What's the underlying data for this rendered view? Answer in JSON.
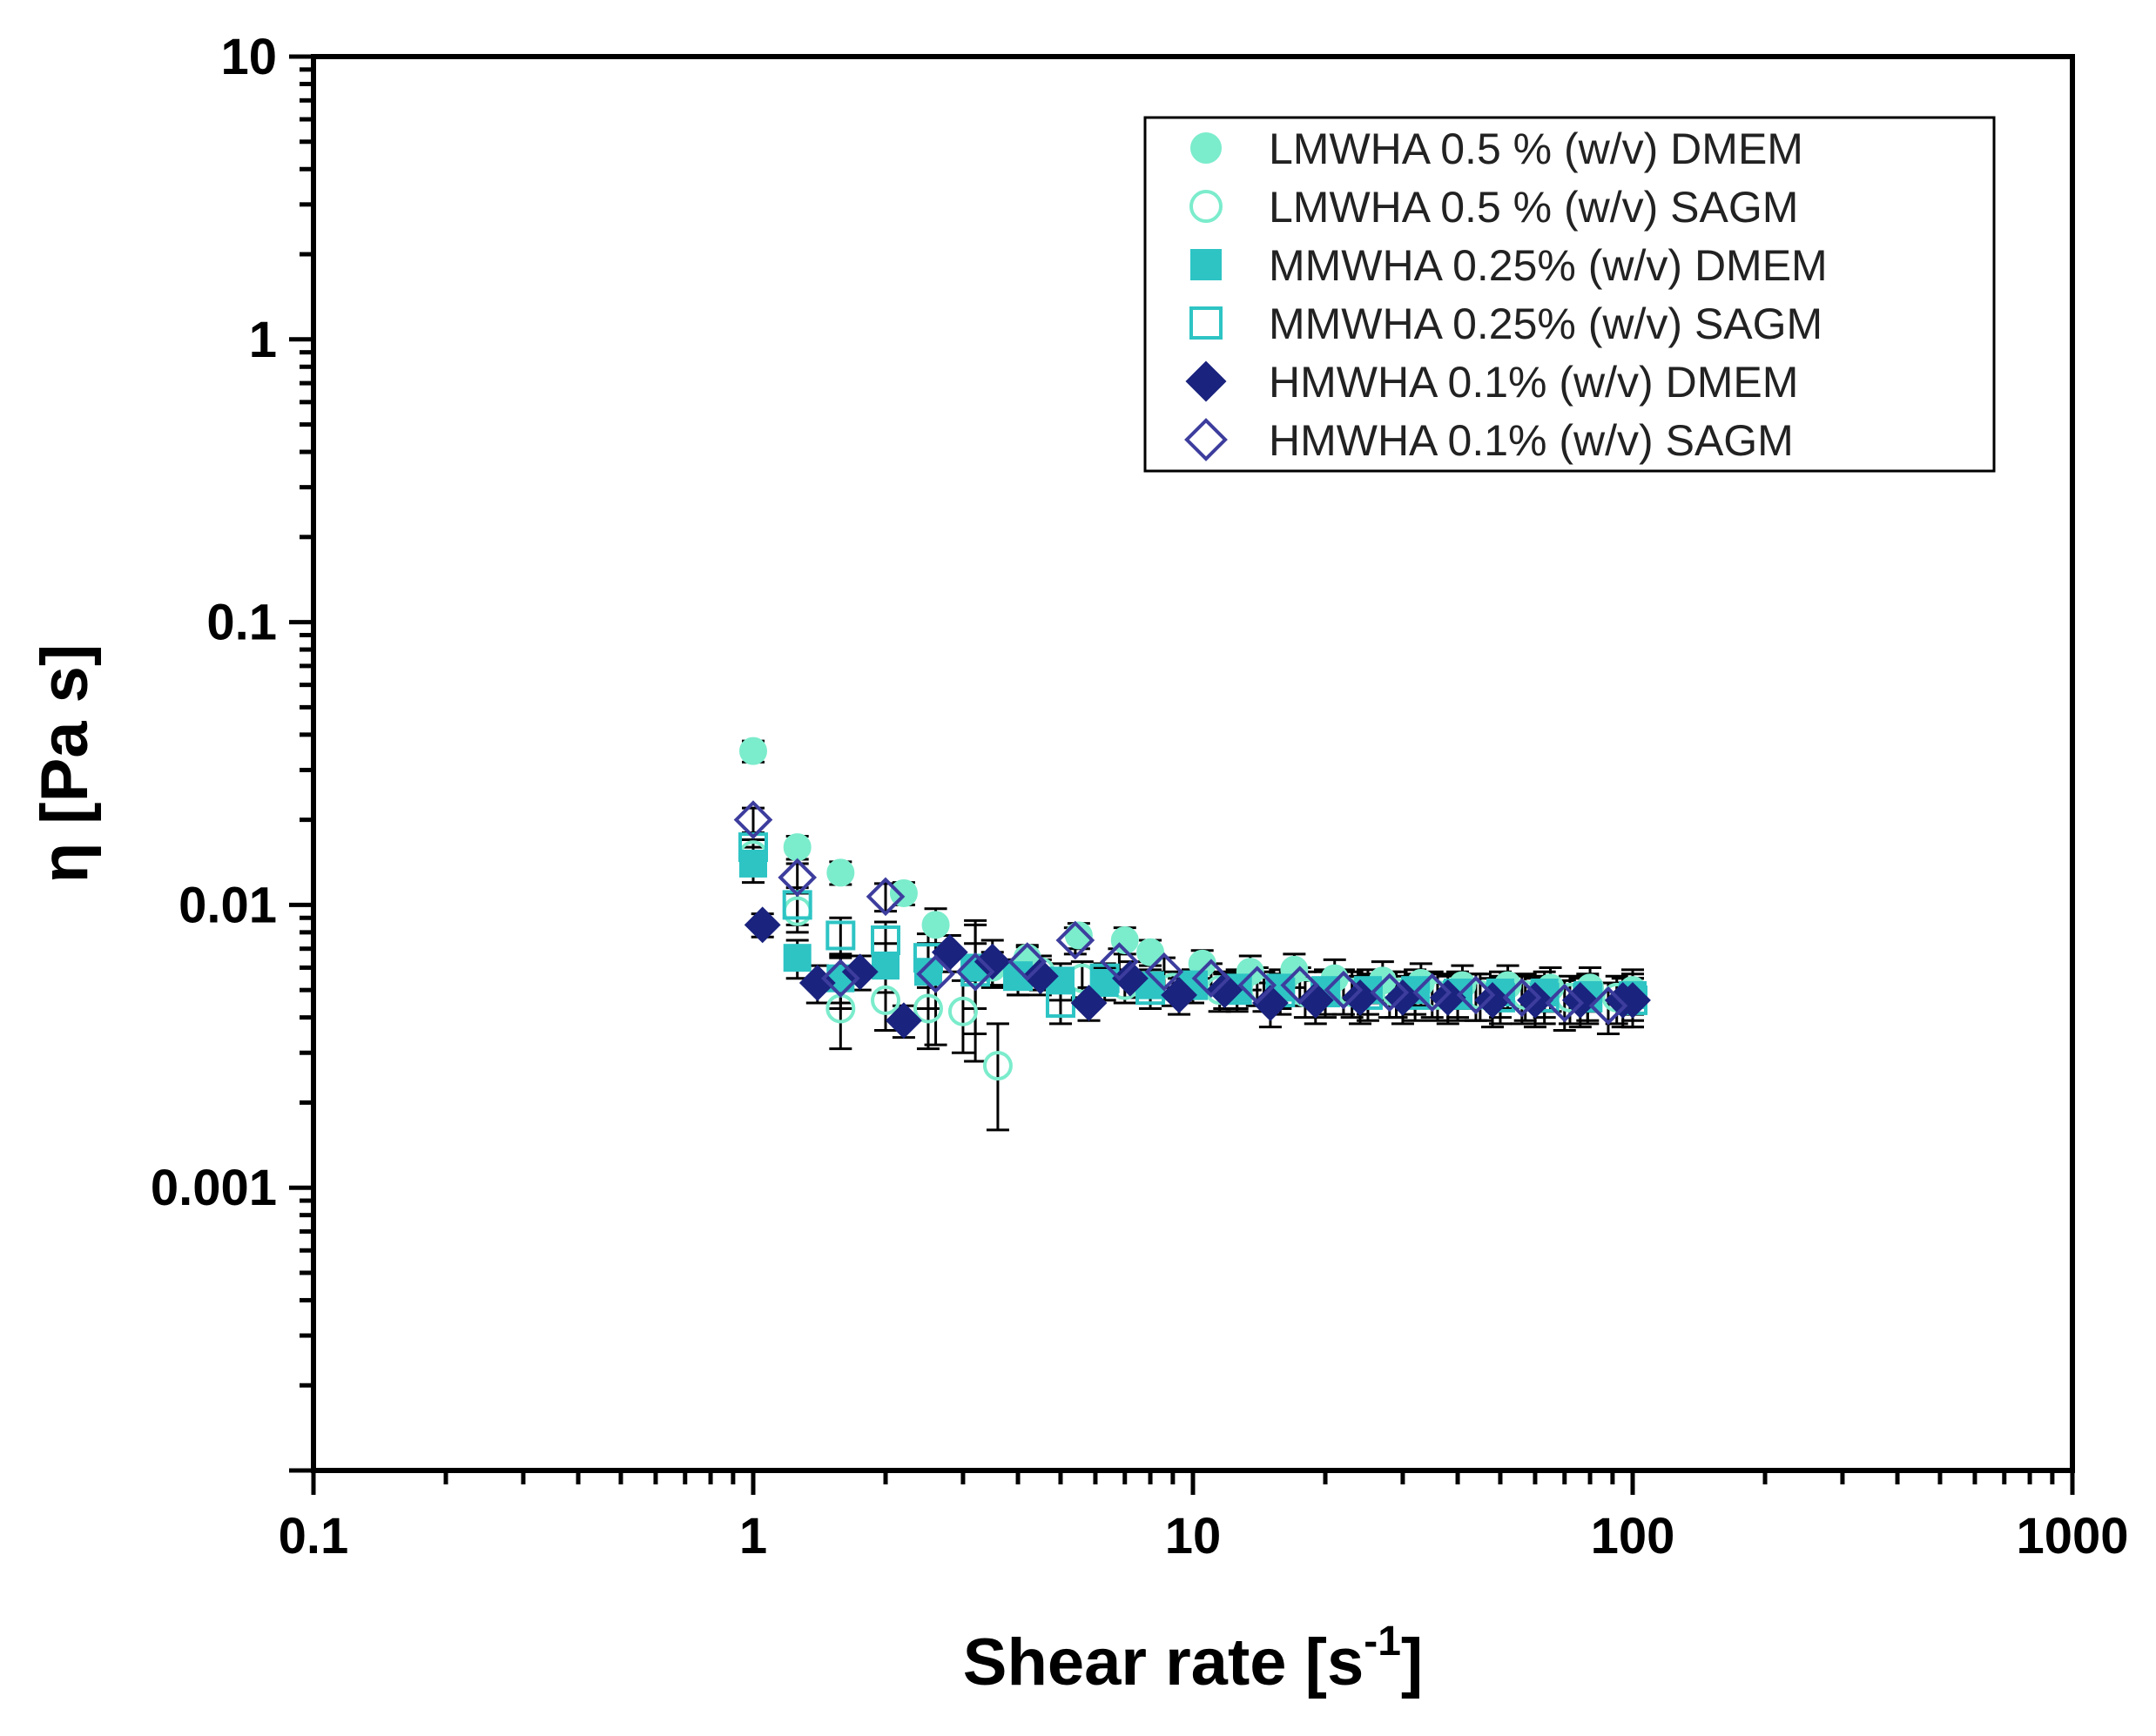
{
  "chart_data": {
    "type": "scatter",
    "title": "",
    "xlabel": "Shear rate [s",
    "xlabel_sup": "-1",
    "xlabel_end": "]",
    "ylabel": "η [Pa s]",
    "xscale": "log",
    "yscale": "log",
    "xlim": [
      0.1,
      1000
    ],
    "ylim": [
      0.0001,
      10
    ],
    "x_ticks": [
      0.1,
      1,
      10,
      100,
      1000
    ],
    "x_tick_labels": [
      "0.1",
      "1",
      "10",
      "100",
      "1000"
    ],
    "y_ticks": [
      0.001,
      0.01,
      0.1,
      1,
      10
    ],
    "y_tick_labels": [
      "0.001",
      "0.01",
      "0.1",
      "1",
      "10"
    ],
    "legend_position": "top-right",
    "colors": {
      "lmwha": "#7beccc",
      "mmwha": "#2ec4c4",
      "hmwha": "#1a237e",
      "hmwha_open": "#3d3d9e",
      "errorbar": "#000000",
      "axis": "#000000"
    },
    "series": [
      {
        "name": "LMWHA 0.5 % (w/v) DMEM",
        "marker": "circle",
        "filled": true,
        "color": "#7beccc",
        "x": [
          1.0,
          1.26,
          1.58,
          2.2,
          2.6,
          3.5,
          4.2,
          5.5,
          7.0,
          8.0,
          10.5,
          13.5,
          17.0,
          21,
          27,
          33,
          41,
          52,
          65,
          80,
          100
        ],
        "y": [
          0.035,
          0.016,
          0.013,
          0.011,
          0.0085,
          0.006,
          0.0065,
          0.0078,
          0.0075,
          0.0068,
          0.0062,
          0.0058,
          0.0059,
          0.0055,
          0.0054,
          0.0053,
          0.0052,
          0.0052,
          0.0051,
          0.0051,
          0.005
        ],
        "err": [
          0.003,
          0.0015,
          0.0012,
          0.001,
          0.0012,
          0.0008,
          0.0007,
          0.0008,
          0.0008,
          0.0007,
          0.0007,
          0.0008,
          0.0008,
          0.0009,
          0.0009,
          0.0009,
          0.0009,
          0.0009,
          0.0009,
          0.0009,
          0.0009
        ]
      },
      {
        "name": "LMWHA 0.5 % (w/v) SAGM",
        "marker": "circle",
        "filled": false,
        "color": "#7beccc",
        "x": [
          1.0,
          1.26,
          1.58,
          2.0,
          2.5,
          3.0,
          3.6,
          4.5,
          5.6,
          7.0,
          9.0,
          11.5,
          14.5,
          18,
          23,
          29,
          36,
          45,
          57,
          72,
          92
        ],
        "y": [
          0.015,
          0.0095,
          0.0043,
          0.0046,
          0.0043,
          0.0042,
          0.0027,
          0.0058,
          0.0055,
          0.0052,
          0.0051,
          0.005,
          0.005,
          0.0049,
          0.0049,
          0.0049,
          0.0048,
          0.0048,
          0.0048,
          0.0047,
          0.0047
        ],
        "err": [
          0.002,
          0.0015,
          0.0012,
          0.001,
          0.0012,
          0.0012,
          0.0011,
          0.0008,
          0.0008,
          0.0007,
          0.0007,
          0.0008,
          0.0008,
          0.0009,
          0.0009,
          0.0009,
          0.0009,
          0.0009,
          0.0009,
          0.0009,
          0.0009
        ]
      },
      {
        "name": "MMWHA 0.25% (w/v) DMEM",
        "marker": "square",
        "filled": true,
        "color": "#2ec4c4",
        "x": [
          1.0,
          1.26,
          1.58,
          2.0,
          2.5,
          3.2,
          4.0,
          5.0,
          6.3,
          8.0,
          10,
          12.6,
          15.8,
          20,
          25,
          32,
          40,
          50,
          63,
          79,
          100
        ],
        "y": [
          0.014,
          0.0065,
          0.0055,
          0.0061,
          0.0058,
          0.006,
          0.0056,
          0.0054,
          0.0053,
          0.0052,
          0.0052,
          0.0051,
          0.0051,
          0.005,
          0.005,
          0.005,
          0.0049,
          0.0049,
          0.0049,
          0.0048,
          0.0048
        ],
        "err": [
          0.002,
          0.001,
          0.0012,
          0.0012,
          0.0015,
          0.0025,
          0.0008,
          0.0008,
          0.0007,
          0.0007,
          0.0007,
          0.0008,
          0.0008,
          0.0009,
          0.0009,
          0.0009,
          0.0009,
          0.0009,
          0.0009,
          0.0009,
          0.0009
        ]
      },
      {
        "name": "MMWHA 0.25% (w/v) SAGM",
        "marker": "square",
        "filled": false,
        "color": "#2ec4c4",
        "x": [
          1.0,
          1.26,
          1.58,
          2.0,
          2.5,
          3.2,
          4.0,
          5.0,
          6.3,
          8.0,
          10,
          12.6,
          15.8,
          20,
          25,
          32,
          40,
          50,
          63,
          79,
          100
        ],
        "y": [
          0.016,
          0.01,
          0.0078,
          0.0075,
          0.0065,
          0.0058,
          0.0056,
          0.0045,
          0.0055,
          0.005,
          0.0052,
          0.005,
          0.0049,
          0.0049,
          0.0048,
          0.0048,
          0.0048,
          0.0047,
          0.0047,
          0.0047,
          0.0046
        ],
        "err": [
          0.002,
          0.0015,
          0.0012,
          0.0012,
          0.0014,
          0.0015,
          0.0008,
          0.0007,
          0.0007,
          0.0007,
          0.0007,
          0.0008,
          0.0008,
          0.0009,
          0.0009,
          0.0009,
          0.0009,
          0.0009,
          0.0009,
          0.0009,
          0.0009
        ]
      },
      {
        "name": "HMWHA 0.1% (w/v) DMEM",
        "marker": "diamond",
        "filled": true,
        "color": "#1a237e",
        "x": [
          1.05,
          1.4,
          1.75,
          2.2,
          2.8,
          3.5,
          4.5,
          5.8,
          7.2,
          9.3,
          11.8,
          15,
          19,
          24,
          30,
          38,
          48,
          60,
          76,
          95,
          100
        ],
        "y": [
          0.0085,
          0.0053,
          0.0058,
          0.0039,
          0.0068,
          0.0063,
          0.0056,
          0.0045,
          0.0055,
          0.0048,
          0.005,
          0.0045,
          0.0046,
          0.0047,
          0.0047,
          0.0047,
          0.0046,
          0.0046,
          0.0046,
          0.0046,
          0.0046
        ],
        "err": [
          0.0008,
          0.0008,
          0.0008,
          0.0005,
          0.001,
          0.0012,
          0.0008,
          0.0006,
          0.0008,
          0.0007,
          0.0007,
          0.0008,
          0.0008,
          0.0009,
          0.0009,
          0.0009,
          0.0009,
          0.0009,
          0.0009,
          0.0009,
          0.0009
        ]
      },
      {
        "name": "HMWHA 0.1% (w/v) SAGM",
        "marker": "diamond",
        "filled": false,
        "color": "#3d3d9e",
        "x": [
          1.0,
          1.26,
          1.58,
          2.0,
          2.6,
          3.2,
          4.2,
          5.4,
          6.8,
          8.6,
          11,
          14,
          17.5,
          22,
          28,
          35,
          44,
          56,
          70,
          88
        ],
        "y": [
          0.02,
          0.0125,
          0.0055,
          0.0107,
          0.0057,
          0.0058,
          0.0063,
          0.0075,
          0.0063,
          0.0058,
          0.0055,
          0.0052,
          0.0052,
          0.005,
          0.0049,
          0.0049,
          0.0048,
          0.0047,
          0.0045,
          0.0044
        ],
        "err": [
          0.002,
          0.0015,
          0.001,
          0.0012,
          0.0025,
          0.003,
          0.0008,
          0.0008,
          0.0007,
          0.0007,
          0.0007,
          0.0008,
          0.0008,
          0.0009,
          0.0009,
          0.0009,
          0.0009,
          0.0009,
          0.0009,
          0.0009
        ]
      }
    ]
  }
}
